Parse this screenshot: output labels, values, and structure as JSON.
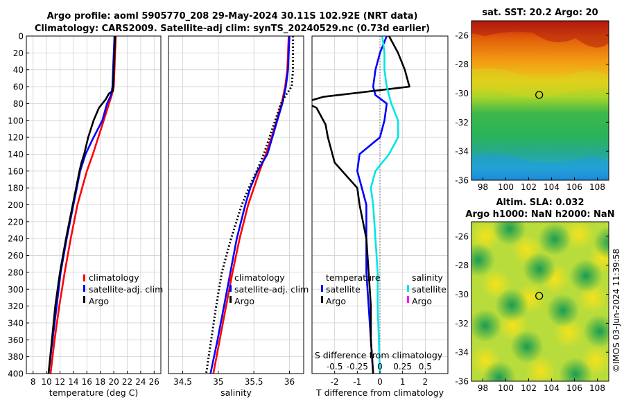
{
  "figure": {
    "title_line1": "Argo profile: aoml 5905770_208 29-May-2024 30.11S 102.92E (NRT data)",
    "title_line2": "Climatology: CARS2009. Satellite-adj clim: synTS_20240529.nc (0.73d earlier)",
    "timestamp": "©IMOS 03-Jun-2024 11:39:58"
  },
  "colors": {
    "climatology": "#ff0000",
    "satellite": "#0000ff",
    "argo": "#000000",
    "salinity_satellite": "#00e5e5",
    "salinity_argo": "#ff00ff"
  },
  "depth_axis": {
    "range": [
      0,
      400
    ],
    "ticks": [
      "0",
      "20",
      "40",
      "60",
      "80",
      "100",
      "120",
      "140",
      "160",
      "180",
      "200",
      "220",
      "240",
      "260",
      "280",
      "300",
      "320",
      "340",
      "360",
      "380",
      "400"
    ]
  },
  "legend": {
    "climatology": "climatology",
    "satellite_adj": "satellite-adj. clim",
    "argo": "Argo",
    "temperature": "temperature",
    "salinity": "salinity",
    "satellite": "satellite"
  },
  "chart_data": [
    {
      "type": "line",
      "id": "temperature",
      "xlabel": "temperature (deg C)",
      "ylabel": "",
      "xlim": [
        7,
        27
      ],
      "ylim": [
        400,
        0
      ],
      "xticks": [
        "8",
        "10",
        "12",
        "14",
        "16",
        "18",
        "20",
        "22",
        "24",
        "26"
      ],
      "xtick_values": [
        8,
        10,
        12,
        14,
        16,
        18,
        20,
        22,
        24,
        26
      ],
      "series": [
        {
          "name": "climatology",
          "depth": [
            0,
            20,
            40,
            60,
            70,
            80,
            100,
            120,
            140,
            160,
            180,
            200,
            240,
            280,
            320,
            360,
            400
          ],
          "values": [
            20.3,
            20.2,
            20.1,
            20.0,
            19.7,
            19.3,
            18.5,
            17.7,
            16.9,
            16.0,
            15.3,
            14.6,
            13.6,
            12.7,
            11.9,
            11.2,
            10.6
          ]
        },
        {
          "name": "satellite-adj. clim",
          "depth": [
            0,
            20,
            40,
            60,
            70,
            80,
            100,
            120,
            140,
            160,
            180,
            200,
            240,
            280,
            320,
            360,
            400
          ],
          "values": [
            20.1,
            20.0,
            19.9,
            19.8,
            19.6,
            19.0,
            18.3,
            17.0,
            15.8,
            15.0,
            14.5,
            14.0,
            13.0,
            12.1,
            11.5,
            10.9,
            10.3
          ]
        },
        {
          "name": "Argo",
          "depth": [
            0,
            20,
            40,
            65,
            68,
            75,
            85,
            100,
            120,
            140,
            150,
            160,
            180,
            200,
            240,
            280,
            320,
            360,
            400
          ],
          "values": [
            20.2,
            20.1,
            20.0,
            19.9,
            19.3,
            18.8,
            17.8,
            17.0,
            16.2,
            15.6,
            15.2,
            14.9,
            14.4,
            13.9,
            12.9,
            12.0,
            11.3,
            10.8,
            10.3
          ]
        }
      ]
    },
    {
      "type": "line",
      "id": "salinity",
      "xlabel": "salinity",
      "ylabel": "",
      "xlim": [
        34.3,
        36.2
      ],
      "ylim": [
        400,
        0
      ],
      "xticks": [
        "34.5",
        "35",
        "35.5",
        "36"
      ],
      "xtick_values": [
        34.5,
        35,
        35.5,
        36
      ],
      "series": [
        {
          "name": "climatology",
          "depth": [
            0,
            20,
            40,
            60,
            80,
            100,
            120,
            140,
            160,
            180,
            200,
            240,
            280,
            320,
            360,
            400
          ],
          "values": [
            35.99,
            35.98,
            35.97,
            35.94,
            35.89,
            35.82,
            35.75,
            35.67,
            35.58,
            35.5,
            35.42,
            35.3,
            35.2,
            35.11,
            35.02,
            34.93
          ]
        },
        {
          "name": "satellite-adj. clim",
          "depth": [
            0,
            20,
            40,
            60,
            80,
            100,
            120,
            140,
            160,
            180,
            200,
            240,
            280,
            320,
            360,
            400
          ],
          "values": [
            36.0,
            35.99,
            35.98,
            35.95,
            35.9,
            35.83,
            35.76,
            35.69,
            35.55,
            35.45,
            35.38,
            35.26,
            35.17,
            35.08,
            34.99,
            34.89
          ]
        },
        {
          "name": "Argo",
          "depth": [
            0,
            20,
            40,
            60,
            70,
            80,
            100,
            120,
            140,
            160,
            180,
            200,
            240,
            280,
            320,
            360,
            400
          ],
          "values": [
            36.05,
            36.05,
            36.05,
            36.03,
            35.95,
            35.88,
            35.8,
            35.72,
            35.64,
            35.54,
            35.43,
            35.33,
            35.18,
            35.05,
            34.97,
            34.9,
            34.83
          ]
        }
      ]
    },
    {
      "type": "line",
      "id": "differences",
      "xlabel": "T difference from climatology",
      "xlabel_top": "S difference from climatology",
      "xlim": [
        -3,
        3
      ],
      "ylim": [
        400,
        0
      ],
      "xticks": [
        "-2",
        "-1",
        "0",
        "1",
        "2"
      ],
      "xtick_values": [
        -2,
        -1,
        0,
        1,
        2
      ],
      "top_ticks": [
        "-0.5",
        "-0.25",
        "0",
        "0.25",
        "0.5"
      ],
      "top_tick_values": [
        -2,
        -1,
        0,
        1,
        2
      ],
      "series": [
        {
          "name": "temperature satellite",
          "depth": [
            0,
            20,
            40,
            60,
            70,
            80,
            100,
            120,
            140,
            160,
            180,
            200,
            240,
            280,
            320,
            360,
            400
          ],
          "values": [
            0.3,
            0.0,
            -0.2,
            -0.3,
            -0.2,
            0.3,
            0.2,
            0.0,
            -0.9,
            -1.0,
            -0.8,
            -0.6,
            -0.6,
            -0.6,
            -0.5,
            -0.4,
            -0.3
          ]
        },
        {
          "name": "temperature Argo",
          "depth": [
            0,
            20,
            40,
            60,
            72,
            76,
            80,
            85,
            95,
            105,
            120,
            140,
            150,
            165,
            180,
            200,
            240,
            280,
            320,
            360,
            400
          ],
          "values": [
            0.4,
            0.8,
            1.1,
            1.3,
            -2.5,
            -3.0,
            -3.2,
            -2.8,
            -2.6,
            -2.4,
            -2.3,
            -2.1,
            -2.0,
            -1.5,
            -1.0,
            -0.9,
            -0.6,
            -0.5,
            -0.4,
            -0.4,
            -0.3
          ]
        },
        {
          "name": "salinity satellite",
          "depth": [
            0,
            20,
            40,
            60,
            80,
            100,
            120,
            140,
            160,
            180,
            200,
            240,
            280,
            320,
            360,
            400
          ],
          "values": [
            0.1,
            0.2,
            0.2,
            0.3,
            0.5,
            0.8,
            0.8,
            0.4,
            -0.2,
            -0.4,
            -0.3,
            -0.2,
            -0.1,
            -0.1,
            -0.05,
            0.0
          ]
        },
        {
          "name": "salinity Argo",
          "depth": [],
          "values": []
        }
      ]
    },
    {
      "type": "heatmap",
      "id": "sst_map",
      "title": "sat. SST: 20.2 Argo: 20",
      "xlim": [
        97,
        109
      ],
      "ylim": [
        -36,
        -25
      ],
      "xticks": [
        "98",
        "100",
        "102",
        "104",
        "106",
        "108"
      ],
      "xtick_values": [
        98,
        100,
        102,
        104,
        106,
        108
      ],
      "yticks": [
        "-26",
        "-28",
        "-30",
        "-32",
        "-34",
        "-36"
      ],
      "ytick_values": [
        -26,
        -28,
        -30,
        -32,
        -34,
        -36
      ],
      "argo_location": {
        "lon": 102.92,
        "lat": -30.11
      }
    },
    {
      "type": "heatmap",
      "id": "sla_map",
      "title": "Altim. SLA: 0.032",
      "subtitle": "Argo h1000: NaN h2000: NaN",
      "xlim": [
        97,
        109
      ],
      "ylim": [
        -36,
        -25
      ],
      "xticks": [
        "98",
        "100",
        "102",
        "104",
        "106",
        "108"
      ],
      "xtick_values": [
        98,
        100,
        102,
        104,
        106,
        108
      ],
      "yticks": [
        "-26",
        "-28",
        "-30",
        "-32",
        "-34",
        "-36"
      ],
      "ytick_values": [
        -26,
        -28,
        -30,
        -32,
        -34,
        -36
      ],
      "argo_location": {
        "lon": 102.92,
        "lat": -30.11
      }
    }
  ]
}
